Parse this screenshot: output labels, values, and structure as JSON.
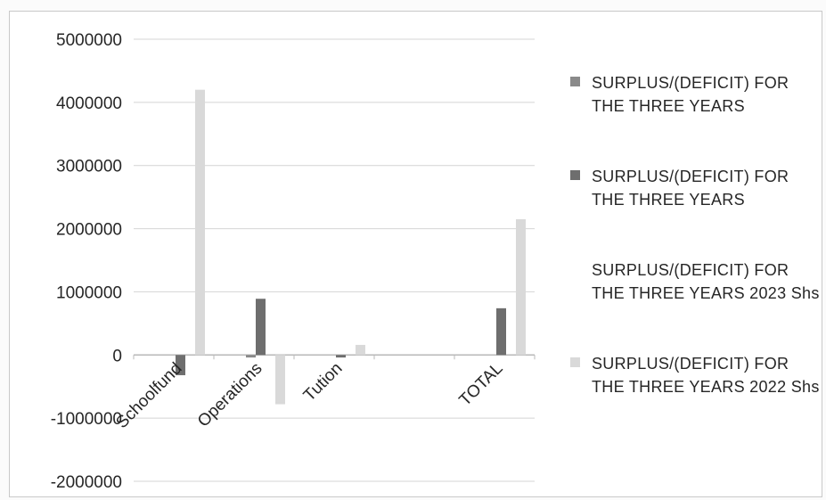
{
  "chart_data": {
    "type": "bar",
    "categories": [
      "Schoolfund",
      "Operations",
      "Tution",
      "",
      "TOTAL"
    ],
    "series": [
      {
        "name": "SURPLUS/(DEFICIT) FOR THE THREE YEARS",
        "color": "#8a8a8a",
        "values": [
          0,
          -40000,
          0,
          0,
          0
        ]
      },
      {
        "name": "SURPLUS/(DEFICIT) FOR THE THREE YEARS",
        "color": "#6e6e6e",
        "values": [
          -320000,
          890000,
          -40000,
          0,
          740000
        ]
      },
      {
        "name": "SURPLUS/(DEFICIT) FOR THE THREE YEARS 2023 Shs",
        "color": "#ffffff",
        "values": [
          0,
          0,
          0,
          0,
          0
        ]
      },
      {
        "name": "SURPLUS/(DEFICIT) FOR THE THREE YEARS 2022 Shs",
        "color": "#d9d9d9",
        "values": [
          4200000,
          -780000,
          160000,
          0,
          2150000
        ]
      }
    ],
    "yticks": [
      5000000,
      4000000,
      3000000,
      2000000,
      1000000,
      0,
      -1000000,
      -2000000
    ],
    "ylim": [
      -2000000,
      5000000
    ],
    "title": "",
    "xlabel": "",
    "ylabel": "",
    "grid": true,
    "legend_position": "right"
  }
}
